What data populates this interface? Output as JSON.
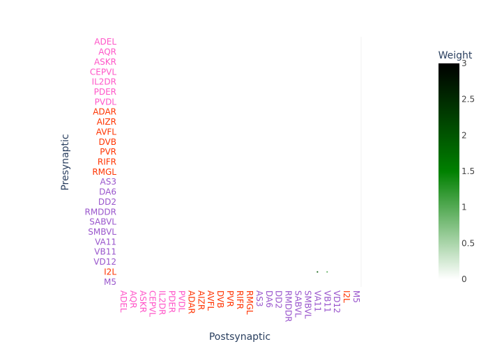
{
  "colors": {
    "sensory": "#ff55c8",
    "interneuron": "#ff3300",
    "motor": "#9955cc",
    "pharyngeal": "#ff3300",
    "axis_title": "#2a3f5f",
    "tick": "#444444"
  },
  "chart_data": {
    "type": "heatmap",
    "xlabel": "Postsynaptic",
    "ylabel": "Presynaptic",
    "colorbar": {
      "title": "Weight",
      "range": [
        0,
        3
      ],
      "ticks": [
        "0",
        "0.5",
        "1",
        "1.5",
        "2",
        "2.5",
        "3"
      ],
      "colorscale": [
        "#ffffff",
        "#008000",
        "#000000"
      ]
    },
    "neurons": [
      {
        "name": "ADEL",
        "group": "sensory"
      },
      {
        "name": "AQR",
        "group": "sensory"
      },
      {
        "name": "ASKR",
        "group": "sensory"
      },
      {
        "name": "CEPVL",
        "group": "sensory"
      },
      {
        "name": "IL2DR",
        "group": "sensory"
      },
      {
        "name": "PDER",
        "group": "sensory"
      },
      {
        "name": "PVDL",
        "group": "sensory"
      },
      {
        "name": "ADAR",
        "group": "interneuron"
      },
      {
        "name": "AIZR",
        "group": "interneuron"
      },
      {
        "name": "AVFL",
        "group": "interneuron"
      },
      {
        "name": "DVB",
        "group": "interneuron"
      },
      {
        "name": "PVR",
        "group": "interneuron"
      },
      {
        "name": "RIFR",
        "group": "interneuron"
      },
      {
        "name": "RMGL",
        "group": "interneuron"
      },
      {
        "name": "AS3",
        "group": "motor"
      },
      {
        "name": "DA6",
        "group": "motor"
      },
      {
        "name": "DD2",
        "group": "motor"
      },
      {
        "name": "RMDDR",
        "group": "motor"
      },
      {
        "name": "SABVL",
        "group": "motor"
      },
      {
        "name": "SMBVL",
        "group": "motor"
      },
      {
        "name": "VA11",
        "group": "motor"
      },
      {
        "name": "VB11",
        "group": "motor"
      },
      {
        "name": "VD12",
        "group": "motor"
      },
      {
        "name": "I2L",
        "group": "pharyngeal"
      },
      {
        "name": "M5",
        "group": "motor"
      }
    ],
    "cells": [
      {
        "pre": "I2L",
        "post": "VA11",
        "weight": 2
      },
      {
        "pre": "I2L",
        "post": "VB11",
        "weight": 1
      }
    ]
  }
}
